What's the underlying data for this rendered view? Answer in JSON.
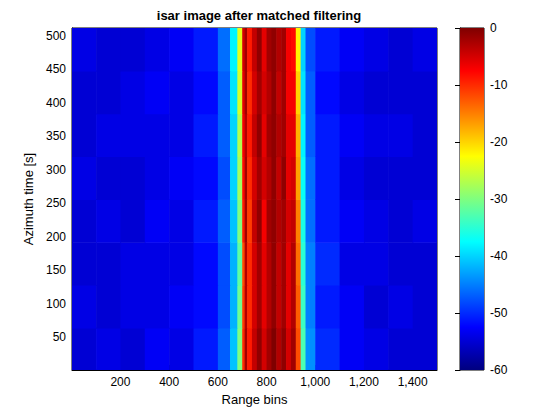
{
  "chart_data": {
    "type": "heatmap",
    "title": "isar image after matched filtering",
    "x_label": "Range bins",
    "y_label": "Azimuth time [s]",
    "xlim": [
      1,
      1500
    ],
    "xticks": [
      200,
      400,
      600,
      800,
      1000,
      1200,
      1400
    ],
    "ylim": [
      1,
      512
    ],
    "yticks": [
      50,
      100,
      150,
      200,
      250,
      300,
      350,
      400,
      450,
      500
    ],
    "colorbar_lim": [
      -60,
      0
    ],
    "colorbar_ticks": [
      -60,
      -50,
      -40,
      -30,
      -20,
      -10,
      0
    ],
    "cells": {
      "x_edges": [
        1,
        100,
        200,
        300,
        400,
        500,
        600,
        650,
        680,
        700,
        710,
        720,
        740,
        760,
        780,
        800,
        820,
        840,
        860,
        880,
        900,
        920,
        940,
        960,
        1000,
        1100,
        1200,
        1300,
        1400,
        1500
      ],
      "y_edges": [
        1,
        64,
        128,
        192,
        256,
        320,
        384,
        448,
        512
      ],
      "values": [
        [
          -55,
          -54,
          -55,
          -53,
          -54,
          -51,
          -47,
          -41,
          -30,
          -10,
          -2,
          -9,
          -4,
          -1,
          -5,
          -2,
          0,
          -3,
          -1,
          -5,
          -2,
          -12,
          -33,
          -44,
          -50,
          -53,
          -54,
          -55,
          -55
        ],
        [
          -54,
          -55,
          -54,
          -54,
          -53,
          -52,
          -48,
          -42,
          -31,
          -11,
          -3,
          -10,
          -5,
          -2,
          -6,
          -3,
          -1,
          -4,
          -2,
          -6,
          -3,
          -13,
          -34,
          -45,
          -51,
          -53,
          -55,
          -54,
          -55
        ],
        [
          -55,
          -55,
          -54,
          -54,
          -54,
          -52,
          -48,
          -42,
          -32,
          -12,
          -3,
          -10,
          -5,
          -2,
          -6,
          -3,
          -1,
          -4,
          -2,
          -6,
          -3,
          -14,
          -35,
          -45,
          -50,
          -54,
          -54,
          -55,
          -55
        ],
        [
          -55,
          -54,
          -55,
          -53,
          -54,
          -51,
          -47,
          -41,
          -30,
          -9,
          -2,
          -11,
          -4,
          -1,
          -7,
          -2,
          -1,
          -3,
          -2,
          -5,
          -4,
          -15,
          -36,
          -46,
          -51,
          -53,
          -54,
          -55,
          -54
        ],
        [
          -54,
          -55,
          -55,
          -54,
          -53,
          -52,
          -48,
          -40,
          -28,
          -8,
          -2,
          -10,
          -5,
          -2,
          -5,
          -3,
          -1,
          -4,
          -1,
          -6,
          -5,
          -17,
          -37,
          -46,
          -51,
          -54,
          -55,
          -55,
          -55
        ],
        [
          -55,
          -54,
          -54,
          -54,
          -54,
          -51,
          -47,
          -40,
          -27,
          -7,
          -3,
          -9,
          -4,
          -1,
          -6,
          -2,
          -1,
          -3,
          -2,
          -6,
          -6,
          -18,
          -38,
          -47,
          -51,
          -53,
          -54,
          -54,
          -55
        ],
        [
          -55,
          -55,
          -54,
          -53,
          -54,
          -52,
          -47,
          -39,
          -25,
          -6,
          -2,
          -10,
          -5,
          -2,
          -5,
          -3,
          -1,
          -4,
          -2,
          -7,
          -7,
          -20,
          -39,
          -47,
          -52,
          -54,
          -55,
          -55,
          -55
        ],
        [
          -54,
          -55,
          -55,
          -54,
          -53,
          -51,
          -46,
          -38,
          -24,
          -5,
          -2,
          -9,
          -4,
          -1,
          -6,
          -2,
          -1,
          -3,
          -2,
          -7,
          -8,
          -22,
          -40,
          -48,
          -51,
          -53,
          -54,
          -55,
          -54
        ]
      ]
    }
  }
}
